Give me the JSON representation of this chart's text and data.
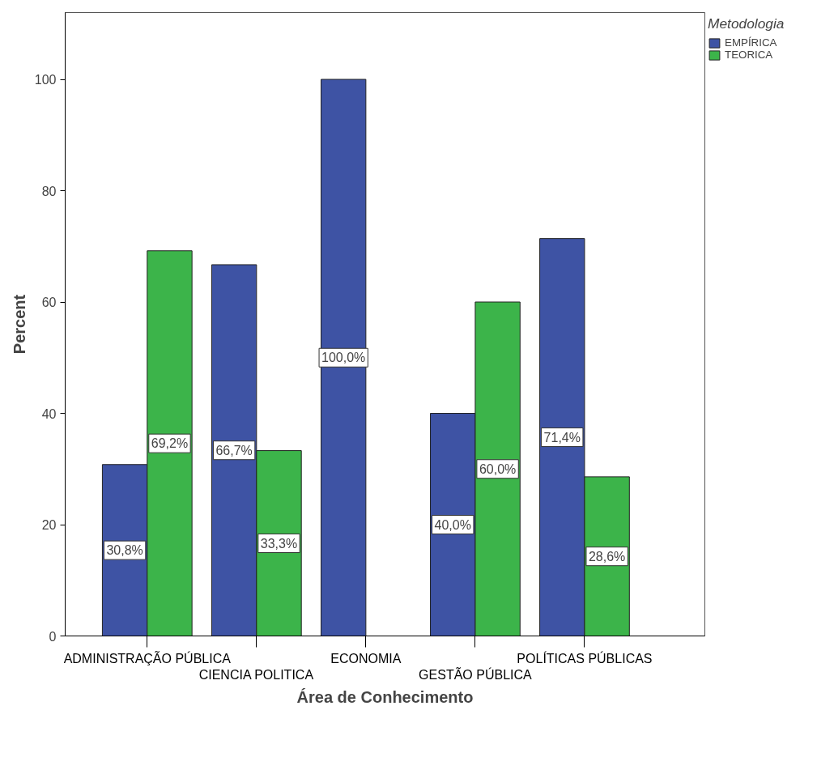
{
  "chart_data": {
    "type": "bar",
    "xlabel": "Área de Conhecimento",
    "ylabel": "Percent",
    "legend_title": "Metodologia",
    "categories": [
      "ADMINISTRAÇÃO PÚBLICA",
      "CIENCIA POLITICA",
      "ECONOMIA",
      "GESTÃO PÚBLICA",
      "POLÍTICAS PÚBLICAS"
    ],
    "series": [
      {
        "name": "EMPÍRICA",
        "color": "#3e53a4",
        "values": [
          30.8,
          66.7,
          100.0,
          40.0,
          71.4
        ],
        "value_labels": [
          "30,8%",
          "66,7%",
          "100,0%",
          "40,0%",
          "71,4%"
        ]
      },
      {
        "name": "TEORICA",
        "color": "#3cb44a",
        "values": [
          69.2,
          33.3,
          null,
          60.0,
          28.6
        ],
        "value_labels": [
          "69,2%",
          "33,3%",
          null,
          "60,0%",
          "28,6%"
        ]
      }
    ],
    "ylim": [
      0,
      112
    ],
    "yticks": [
      0,
      20,
      40,
      60,
      80,
      100
    ],
    "grid": false,
    "legend": "top right"
  }
}
